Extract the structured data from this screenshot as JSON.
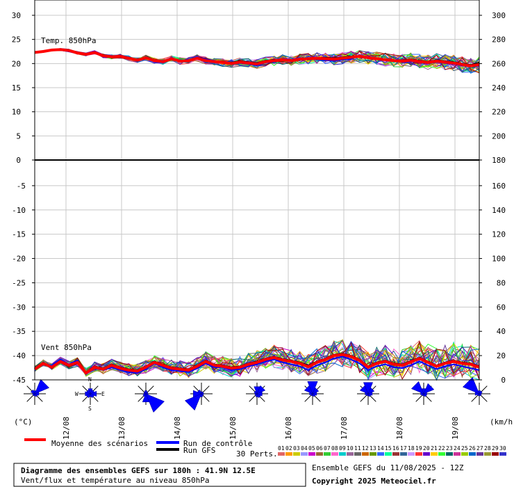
{
  "chart_data": {
    "type": "line",
    "source": "Meteociel GEFS ensemble diagram",
    "panels": [
      {
        "name": "temperature",
        "label": "Temp. 850hPa",
        "y_left_ticks": [
          30,
          25,
          20,
          15,
          10,
          5,
          0
        ],
        "y_right_ticks": [
          300,
          280,
          260,
          240,
          220,
          200,
          180
        ],
        "ylim": [
          0,
          30
        ]
      },
      {
        "name": "wind",
        "label": "Vent 850hPa",
        "y_left_ticks": [
          -5,
          -10,
          -15,
          -20,
          -25,
          -30,
          -35,
          -40,
          -45
        ],
        "y_right_ticks": [
          160,
          140,
          120,
          100,
          80,
          60,
          40,
          20,
          0
        ],
        "ylim": [
          -45,
          0
        ]
      }
    ],
    "x_ticks": [
      "12/08",
      "13/08",
      "14/08",
      "15/08",
      "16/08",
      "17/08",
      "18/08",
      "19/08"
    ],
    "unit_left": "(°C)",
    "unit_right": "(km/h)",
    "series": [
      {
        "name": "Moyenne des scénarios",
        "color": "#ff0000",
        "temp": [
          22.3,
          22.5,
          22.8,
          22.9,
          22.7,
          22.2,
          21.9,
          22.3,
          21.6,
          21.4,
          21.5,
          21.1,
          20.7,
          21.2,
          20.6,
          20.4,
          21.0,
          20.5,
          20.6,
          21.1,
          20.6,
          20.4,
          20.2,
          20.0,
          20.3,
          20.1,
          19.9,
          20.4,
          20.6,
          20.8,
          20.6,
          20.9,
          21.0,
          21.1,
          21.0,
          20.9,
          21.1,
          21.3,
          21.5,
          21.2,
          21.0,
          20.8,
          20.6,
          20.5,
          20.7,
          20.4,
          20.2,
          20.5,
          20.3,
          20.1,
          19.8,
          19.5,
          19.8
        ],
        "wind": [
          -42.8,
          -41.6,
          -42.4,
          -41.2,
          -42.0,
          -41.4,
          -43.6,
          -42.4,
          -42.8,
          -42.0,
          -42.6,
          -43.0,
          -43.2,
          -42.4,
          -41.4,
          -42.0,
          -42.6,
          -42.8,
          -43.0,
          -42.2,
          -41.2,
          -42.0,
          -42.2,
          -42.6,
          -42.4,
          -41.8,
          -41.4,
          -40.8,
          -40.4,
          -40.9,
          -41.2,
          -41.6,
          -42.3,
          -41.4,
          -40.8,
          -40.0,
          -39.8,
          -40.2,
          -41.0,
          -42.4,
          -41.6,
          -41.2,
          -41.8,
          -42.0,
          -41.3,
          -40.6,
          -41.4,
          -42.2,
          -41.6,
          -41.2,
          -41.6,
          -41.8,
          -42.4
        ]
      },
      {
        "name": "Run de contrôle",
        "color": "#0000ff",
        "temp": [
          22.2,
          22.4,
          22.9,
          22.8,
          22.5,
          22.1,
          21.7,
          22.5,
          21.4,
          21.3,
          21.7,
          21.0,
          20.9,
          21.1,
          20.4,
          20.2,
          20.9,
          20.6,
          20.8,
          21.3,
          20.9,
          20.6,
          20.1,
          19.8,
          20.1,
          19.9,
          19.6,
          20.2,
          20.4,
          21.0,
          20.8,
          21.0,
          21.1,
          20.9,
          20.7,
          20.6,
          20.8,
          21.0,
          21.6,
          21.4,
          21.1,
          20.9,
          20.7,
          20.3,
          20.5,
          20.2,
          20.0,
          20.3,
          20.1,
          19.9,
          19.6,
          19.4,
          19.6
        ],
        "wind": [
          -43.0,
          -41.8,
          -42.0,
          -40.8,
          -41.8,
          -41.0,
          -43.8,
          -42.6,
          -43.0,
          -42.4,
          -43.0,
          -43.4,
          -43.6,
          -42.8,
          -41.6,
          -42.4,
          -43.0,
          -43.2,
          -43.4,
          -42.6,
          -41.6,
          -42.4,
          -42.4,
          -43.0,
          -42.8,
          -42.2,
          -41.8,
          -41.2,
          -40.8,
          -41.4,
          -41.8,
          -42.2,
          -43.0,
          -42.0,
          -41.4,
          -40.6,
          -40.2,
          -40.8,
          -41.6,
          -43.0,
          -42.2,
          -41.8,
          -42.4,
          -42.6,
          -42.0,
          -41.2,
          -42.0,
          -42.8,
          -42.2,
          -41.8,
          -42.2,
          -42.6,
          -43.0
        ]
      },
      {
        "name": "Run GFS",
        "color": "#000000",
        "temp": [
          22.4,
          22.6,
          22.7,
          23.0,
          22.8,
          22.3,
          22.0,
          22.2,
          21.8,
          21.5,
          21.4,
          21.2,
          20.6,
          21.3,
          20.7,
          20.5,
          21.1,
          20.4,
          20.5,
          21.0,
          20.5,
          20.3,
          20.3,
          20.2,
          20.5,
          20.3,
          20.1,
          20.6,
          20.8,
          20.7,
          20.5,
          20.8,
          20.9,
          21.2,
          21.2,
          21.1,
          21.3,
          21.5,
          21.3,
          21.1,
          20.9,
          20.7,
          20.5,
          20.7,
          20.9,
          20.6,
          20.4,
          20.7,
          20.5,
          20.3,
          20.0,
          19.7,
          20.2
        ],
        "wind": [
          -42.6,
          -41.4,
          -42.6,
          -41.4,
          -42.2,
          -41.6,
          -43.4,
          -42.2,
          -42.6,
          -41.8,
          -42.4,
          -42.8,
          -43.0,
          -42.2,
          -41.2,
          -41.8,
          -42.4,
          -42.6,
          -42.8,
          -42.0,
          -41.0,
          -41.8,
          -42.0,
          -42.4,
          -42.2,
          -41.6,
          -41.2,
          -40.6,
          -40.2,
          -40.7,
          -41.0,
          -41.4,
          -42.0,
          -41.2,
          -40.6,
          -39.8,
          -39.6,
          -40.0,
          -40.8,
          -42.2,
          -41.4,
          -41.0,
          -41.6,
          -41.8,
          -41.1,
          -40.4,
          -41.2,
          -42.0,
          -41.4,
          -41.0,
          -41.4,
          -41.6,
          -42.2
        ]
      }
    ],
    "wind_roses": [
      {
        "x_day": 0.0,
        "sectors": [
          3,
          14,
          4,
          3,
          2,
          2,
          2,
          4
        ]
      },
      {
        "x_day": 1.0,
        "sectors": [
          5,
          4,
          6,
          4,
          3,
          4,
          5,
          4
        ]
      },
      {
        "x_day": 2.0,
        "sectors": [
          3,
          2,
          2,
          18,
          8,
          3,
          2,
          2
        ]
      },
      {
        "x_day": 3.0,
        "sectors": [
          2,
          2,
          2,
          2,
          3,
          16,
          8,
          4
        ]
      },
      {
        "x_day": 4.0,
        "sectors": [
          7,
          8,
          5,
          4,
          3,
          2,
          2,
          3
        ]
      },
      {
        "x_day": 5.0,
        "sectors": [
          12,
          6,
          4,
          3,
          2,
          2,
          3,
          8
        ]
      },
      {
        "x_day": 6.0,
        "sectors": [
          11,
          6,
          4,
          3,
          2,
          2,
          3,
          8
        ]
      },
      {
        "x_day": 7.0,
        "sectors": [
          5,
          10,
          3,
          3,
          2,
          2,
          3,
          12
        ]
      },
      {
        "x_day": 8.0,
        "sectors": [
          3,
          3,
          2,
          2,
          2,
          2,
          4,
          16
        ]
      }
    ],
    "rose_labels": {
      "n": "N",
      "e": "E",
      "s": "S",
      "w": "W"
    }
  },
  "legend": {
    "mean_label": "Moyenne des scénarios",
    "control_label": "Run de contrôle",
    "gfs_label": "Run GFS",
    "perts_label": "30 Perts.",
    "perts_numbers": [
      "01",
      "02",
      "03",
      "04",
      "05",
      "06",
      "07",
      "08",
      "09",
      "10",
      "11",
      "12",
      "13",
      "14",
      "15",
      "16",
      "17",
      "18",
      "19",
      "20",
      "21",
      "22",
      "23",
      "24",
      "25",
      "26",
      "27",
      "28",
      "29",
      "30"
    ],
    "perts_colors": [
      "#e06666",
      "#ff9900",
      "#cccc00",
      "#9999ff",
      "#cc00cc",
      "#996633",
      "#33cc33",
      "#ff66cc",
      "#00cccc",
      "#996699",
      "#666666",
      "#cc6600",
      "#669900",
      "#3366ff",
      "#00ff99",
      "#993333",
      "#336699",
      "#cc99ff",
      "#ff3333",
      "#6600cc",
      "#ffcc00",
      "#33ff33",
      "#006666",
      "#cc3399",
      "#99cc00",
      "#0066cc",
      "#663399",
      "#999933",
      "#990000",
      "#3333cc"
    ]
  },
  "footer": {
    "title": "Diagramme des ensembles GEFS sur 180h : 41.9N 12.5E",
    "subtitle": "Vent/flux et température au niveau 850hPa",
    "run": "Ensemble GEFS du 11/08/2025 - 12Z",
    "copyright": "Copyright 2025 Meteociel.fr"
  }
}
